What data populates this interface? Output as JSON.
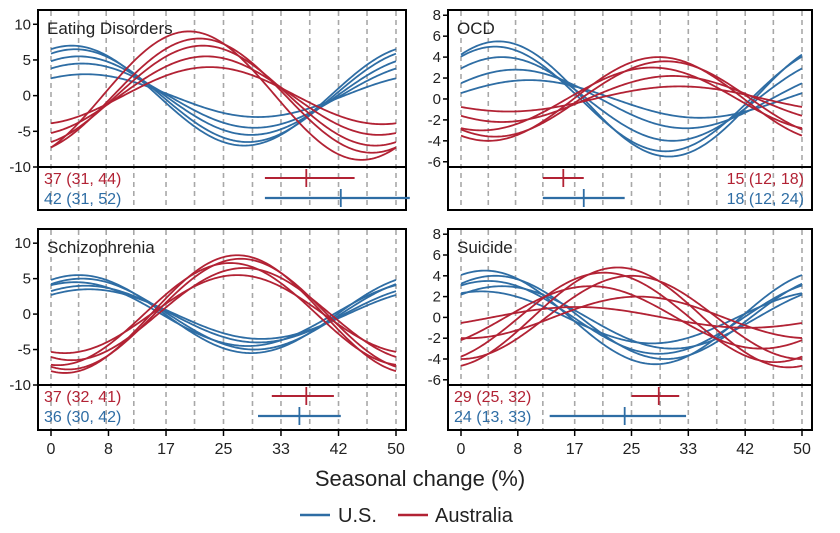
{
  "colors": {
    "us": "#2e6da4",
    "australia": "#b22234",
    "grid": "#a8a8a8",
    "axis": "#000000",
    "text": "#222222"
  },
  "x_axis": {
    "label": "Seasonal change (%)",
    "ticks": [
      "0",
      "8",
      "17",
      "25",
      "33",
      "42",
      "50"
    ]
  },
  "legend": [
    {
      "label": "U.S.",
      "color_key": "us"
    },
    {
      "label": "Australia",
      "color_key": "australia"
    }
  ],
  "chart_data": [
    {
      "type": "line",
      "title": "Eating Disorders",
      "title_pos": "left",
      "ylim": [
        -10,
        12
      ],
      "yticks": [
        10,
        5,
        0,
        -5,
        -10
      ],
      "ytick_labels": [
        "10",
        "5",
        "0",
        "-5",
        "-10"
      ],
      "stats": [
        {
          "group": "australia",
          "text": "37 (31, 44)",
          "estimate": 37,
          "lower": 31,
          "upper": 44
        },
        {
          "group": "us",
          "text": "42 (31, 52)",
          "estimate": 42,
          "lower": 31,
          "upper": 52
        }
      ],
      "stats_pos": "left",
      "series": [
        {
          "group": "us",
          "amp": 7.0,
          "peak": 3.0
        },
        {
          "group": "us",
          "amp": 6.5,
          "peak": 3.5
        },
        {
          "group": "us",
          "amp": 5.5,
          "peak": 4.0
        },
        {
          "group": "us",
          "amp": 4.5,
          "peak": 4.5
        },
        {
          "group": "us",
          "amp": 3.0,
          "peak": 5.0
        },
        {
          "group": "australia",
          "amp": 9.0,
          "peak": 20.0
        },
        {
          "group": "australia",
          "amp": 8.0,
          "peak": 21.5
        },
        {
          "group": "australia",
          "amp": 7.0,
          "peak": 22.0
        },
        {
          "group": "australia",
          "amp": 5.5,
          "peak": 22.5
        },
        {
          "group": "australia",
          "amp": 4.0,
          "peak": 23.0
        }
      ]
    },
    {
      "type": "line",
      "title": "OCD",
      "title_pos": "left",
      "ylim": [
        -6.5,
        8.5
      ],
      "yticks": [
        8,
        6,
        4,
        2,
        0,
        -2,
        -4,
        -6
      ],
      "ytick_labels": [
        "8",
        "6",
        "4",
        "2",
        "0",
        "-2",
        "-4",
        "-6"
      ],
      "stats": [
        {
          "group": "australia",
          "text": "15 (12, 18)",
          "estimate": 15,
          "lower": 12,
          "upper": 18
        },
        {
          "group": "us",
          "text": "18 (12, 24)",
          "estimate": 18,
          "lower": 12,
          "upper": 24
        }
      ],
      "stats_pos": "right",
      "series": [
        {
          "group": "us",
          "amp": 5.5,
          "peak": 5.5
        },
        {
          "group": "us",
          "amp": 5.0,
          "peak": 5.0
        },
        {
          "group": "us",
          "amp": 4.0,
          "peak": 6.0
        },
        {
          "group": "us",
          "amp": 2.8,
          "peak": 8.0
        },
        {
          "group": "us",
          "amp": 1.8,
          "peak": 10.0
        },
        {
          "group": "australia",
          "amp": 4.0,
          "peak": 29.0
        },
        {
          "group": "australia",
          "amp": 3.6,
          "peak": 30.0
        },
        {
          "group": "australia",
          "amp": 3.0,
          "peak": 28.0
        },
        {
          "group": "australia",
          "amp": 2.2,
          "peak": 31.0
        },
        {
          "group": "australia",
          "amp": 1.2,
          "peak": 32.0
        }
      ]
    },
    {
      "type": "line",
      "title": "Schizophrenia",
      "title_pos": "left",
      "ylim": [
        -10,
        12
      ],
      "yticks": [
        10,
        5,
        0,
        -5,
        -10
      ],
      "ytick_labels": [
        "10",
        "5",
        "0",
        "-5",
        "-10"
      ],
      "stats": [
        {
          "group": "australia",
          "text": "37 (32, 41)",
          "estimate": 37,
          "lower": 32,
          "upper": 41
        },
        {
          "group": "us",
          "text": "36 (30, 42)",
          "estimate": 36,
          "lower": 30,
          "upper": 42
        }
      ],
      "stats_pos": "left",
      "series": [
        {
          "group": "us",
          "amp": 5.5,
          "peak": 4.0
        },
        {
          "group": "us",
          "amp": 5.0,
          "peak": 4.5
        },
        {
          "group": "us",
          "amp": 4.5,
          "peak": 3.5
        },
        {
          "group": "us",
          "amp": 4.0,
          "peak": 5.0
        },
        {
          "group": "us",
          "amp": 3.5,
          "peak": 5.5
        },
        {
          "group": "australia",
          "amp": 8.3,
          "peak": 27.0
        },
        {
          "group": "australia",
          "amp": 7.8,
          "peak": 27.5
        },
        {
          "group": "australia",
          "amp": 7.2,
          "peak": 26.0
        },
        {
          "group": "australia",
          "amp": 6.5,
          "peak": 28.0
        },
        {
          "group": "australia",
          "amp": 5.5,
          "peak": 27.0
        }
      ]
    },
    {
      "type": "line",
      "title": "Suicide",
      "title_pos": "left",
      "ylim": [
        -6.5,
        8.5
      ],
      "yticks": [
        8,
        6,
        4,
        2,
        0,
        -2,
        -4,
        -6
      ],
      "ytick_labels": [
        "8",
        "6",
        "4",
        "2",
        "0",
        "-2",
        "-4",
        "-6"
      ],
      "stats": [
        {
          "group": "australia",
          "text": "29 (25, 32)",
          "estimate": 29,
          "lower": 25,
          "upper": 32
        },
        {
          "group": "us",
          "text": "24 (13, 33)",
          "estimate": 24,
          "lower": 13,
          "upper": 33
        }
      ],
      "stats_pos": "left",
      "series": [
        {
          "group": "us",
          "amp": 4.5,
          "peak": 3.5
        },
        {
          "group": "us",
          "amp": 4.0,
          "peak": 5.0
        },
        {
          "group": "us",
          "amp": 3.5,
          "peak": 4.0
        },
        {
          "group": "us",
          "amp": 3.0,
          "peak": 6.0
        },
        {
          "group": "us",
          "amp": 2.5,
          "peak": 3.0
        },
        {
          "group": "australia",
          "amp": 4.8,
          "peak": 23.0
        },
        {
          "group": "australia",
          "amp": 4.3,
          "peak": 21.0
        },
        {
          "group": "australia",
          "amp": 4.0,
          "peak": 25.0
        },
        {
          "group": "australia",
          "amp": 3.0,
          "peak": 19.0
        },
        {
          "group": "australia",
          "amp": 2.0,
          "peak": 26.0
        },
        {
          "group": "australia",
          "amp": 1.0,
          "peak": 17.0
        }
      ]
    }
  ]
}
